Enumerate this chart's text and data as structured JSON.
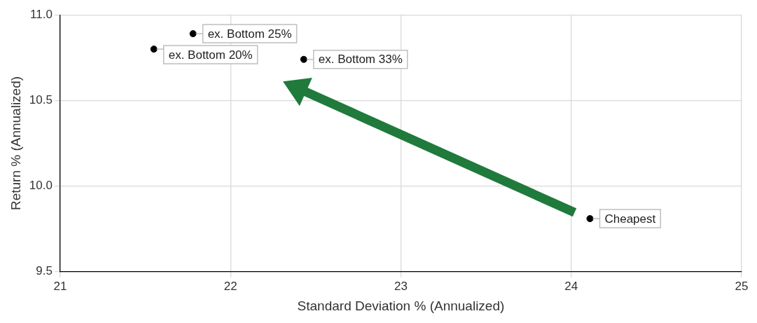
{
  "chart_data": {
    "type": "scatter",
    "xlabel": "Standard Deviation % (Annualized)",
    "ylabel": "Return % (Annualized)",
    "x": [
      21.55,
      21.78,
      22.43,
      24.11
    ],
    "series": [
      {
        "color": "#000000",
        "values": [
          10.8,
          10.89,
          10.74,
          9.81
        ]
      }
    ],
    "xlim": [
      21,
      25
    ],
    "xticks": [
      21,
      22,
      23,
      24,
      25
    ],
    "ylim": [
      9.5,
      11.0
    ],
    "yticks": [
      {
        "value": 9.5,
        "label": "9.5"
      },
      {
        "value": 10,
        "label": "10.0"
      },
      {
        "value": 10.5,
        "label": "10.5"
      },
      {
        "value": 11,
        "label": "11.0"
      }
    ],
    "grid": true,
    "legend": false,
    "marker": "circle",
    "annotations": [
      {
        "text": "ex. Bottom 20%",
        "x": 21.55,
        "y": 10.8
      },
      {
        "text": "ex. Bottom 25%",
        "x": 21.78,
        "y": 10.89
      },
      {
        "text": "ex. Bottom 33%",
        "x": 22.43,
        "y": 10.74
      },
      {
        "text": "Cheapest",
        "x": 24.11,
        "y": 9.81
      }
    ]
  }
}
